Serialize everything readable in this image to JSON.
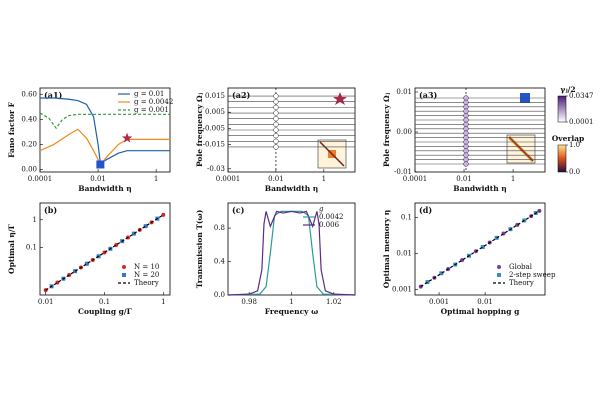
{
  "chart_data": [
    {
      "type": "line",
      "title": "(a1)",
      "xlabel": "Bandwidth η",
      "ylabel": "Fano factor F",
      "xscale": "log",
      "xlim": [
        0.0001,
        3
      ],
      "xticks": [
        0.0001,
        0.01,
        1
      ],
      "ylim": [
        -0.02,
        0.65
      ],
      "yticks": [
        {
          "value": 0,
          "label": "0.00"
        },
        {
          "value": 0.2,
          "label": "0.20"
        },
        {
          "value": 0.4,
          "label": "0.40"
        },
        {
          "value": 0.6,
          "label": "0.60"
        }
      ],
      "legend": "upper right",
      "series": [
        {
          "name": "g = 0.01",
          "color": "#1f5fa8",
          "style": "solid",
          "x": [
            0.0001,
            0.0003,
            0.001,
            0.002,
            0.004,
            0.007,
            0.01,
            0.012,
            0.02,
            0.05,
            0.1,
            0.3,
            1,
            3
          ],
          "values": [
            0.57,
            0.57,
            0.56,
            0.55,
            0.52,
            0.42,
            0.2,
            0.05,
            0.08,
            0.13,
            0.15,
            0.15,
            0.15,
            0.15
          ]
        },
        {
          "name": "g = 0.0042",
          "color": "#f08a1c",
          "style": "solid",
          "x": [
            0.0001,
            0.0003,
            0.001,
            0.002,
            0.004,
            0.007,
            0.01,
            0.012,
            0.02,
            0.05,
            0.1,
            0.3,
            1,
            3
          ],
          "values": [
            0.15,
            0.2,
            0.28,
            0.32,
            0.25,
            0.15,
            0.08,
            0.04,
            0.1,
            0.2,
            0.24,
            0.24,
            0.24,
            0.24
          ]
        },
        {
          "name": "g = 0.001",
          "color": "#2e9a3a",
          "style": "dashed",
          "x": [
            0.0001,
            0.0002,
            0.00036,
            0.0006,
            0.001,
            0.002,
            0.004,
            0.01,
            0.1,
            1,
            3
          ],
          "values": [
            0.45,
            0.41,
            0.33,
            0.4,
            0.43,
            0.44,
            0.44,
            0.44,
            0.44,
            0.44,
            0.44
          ]
        }
      ],
      "markers": [
        {
          "shape": "star",
          "color": "#b5244a",
          "x": 0.1,
          "y": 0.25
        },
        {
          "shape": "square",
          "color": "#2255cc",
          "x": 0.012,
          "y": 0.04
        }
      ]
    },
    {
      "type": "poles",
      "title": "(a2)",
      "xlabel": "Bandwidth η",
      "ylabel": "Pole frequency Ωⱼ",
      "xscale": "log",
      "xlim": [
        0.0001,
        20
      ],
      "xticks": [
        0.0001,
        0.01,
        1
      ],
      "ylim": [
        -0.032,
        0.02
      ],
      "yticks": [
        -0.03,
        -0.015,
        -0.005,
        0.005,
        0.015
      ],
      "vline": 0.01,
      "marker_x": 0.01,
      "marker_color": "#ffffff",
      "levels": [
        0.015,
        0.0115,
        0.008,
        0.0045,
        0.001,
        -0.0025,
        -0.006,
        -0.0095,
        -0.013,
        -0.0165
      ]
    },
    {
      "type": "poles",
      "title": "(a3)",
      "xlabel": "Bandwidth η",
      "ylabel": "Pole frequency Ωⱼ",
      "xscale": "log",
      "xlim": [
        0.0001,
        20
      ],
      "xticks": [
        0.0001,
        0.01,
        1
      ],
      "ylim": [
        -0.01,
        0.011
      ],
      "yticks": [
        -0.01,
        {
          "value": 0,
          "label": "0.00"
        },
        0.01
      ],
      "vline": 0.012,
      "marker_x": 0.012,
      "marker_color": "#c9b3e6",
      "levels": [
        0.0085,
        0.0074,
        0.0063,
        0.0052,
        0.0041,
        0.003,
        0.0019,
        0.0008,
        -0.0003,
        -0.0014,
        -0.0025,
        -0.0036,
        -0.0047,
        -0.0058,
        -0.0069,
        -0.008
      ],
      "colorbars": [
        {
          "label": "γⱼ/2",
          "lim": [
            0.0001,
            0.0347
          ],
          "ticks": [
            0.0001,
            0.0347
          ],
          "gradient": "gPur"
        },
        {
          "label": "Overlap",
          "lim": [
            0,
            1
          ],
          "ticks": [
            {
              "value": 0,
              "label": "0.0"
            },
            {
              "value": 1,
              "label": "1.0"
            }
          ],
          "gradient": "gOrg"
        }
      ]
    },
    {
      "type": "line",
      "title": "(b)",
      "xlabel": "Coupling g/Γ",
      "ylabel": "Optimal η/Γ",
      "xscale": "log",
      "yscale": "log",
      "xlim": [
        0.008,
        1.3
      ],
      "xticks": [
        0.01,
        0.1,
        1
      ],
      "ylim": [
        0.002,
        4
      ],
      "yticks": [
        0.1,
        1
      ],
      "legend": "lower right",
      "series": [
        {
          "name": "N = 10",
          "color": "#d62728",
          "style": "markers",
          "marker": "circle",
          "x": [
            0.01,
            0.0158,
            0.0251,
            0.0398,
            0.0631,
            0.1,
            0.158,
            0.251,
            0.398,
            0.631,
            1
          ],
          "values": [
            0.003,
            0.0056,
            0.0104,
            0.0193,
            0.036,
            0.067,
            0.125,
            0.232,
            0.433,
            0.805,
            1.5
          ]
        },
        {
          "name": "N = 20",
          "color": "#3a78c2",
          "style": "markers",
          "marker": "square",
          "x": [
            0.0126,
            0.02,
            0.0316,
            0.0501,
            0.0794,
            0.126,
            0.2,
            0.316,
            0.501,
            0.794
          ],
          "values": [
            0.0041,
            0.0077,
            0.0143,
            0.0265,
            0.049,
            0.091,
            0.171,
            0.318,
            0.59,
            1.1
          ]
        },
        {
          "name": "Theory",
          "color": "#000000",
          "style": "dashed",
          "x": [
            0.01,
            1
          ],
          "values": [
            0.003,
            1.5
          ]
        }
      ]
    },
    {
      "type": "line",
      "title": "(c)",
      "xlabel": "Frequency ω",
      "ylabel": "Transmission T(ω)",
      "xlim": [
        0.97,
        1.03
      ],
      "xticks": [
        0.98,
        1,
        1.02
      ],
      "ylim": [
        0,
        1.1
      ],
      "yticks": [
        {
          "value": 0,
          "label": "0.0"
        },
        0.4,
        0.8
      ],
      "legend": "upper right",
      "legend_title": "g",
      "series": [
        {
          "name": "0.0042",
          "color": "#2a9d8f",
          "style": "solid",
          "x": [
            0.97,
            0.985,
            0.988,
            0.99,
            0.992,
            0.995,
            1,
            1.005,
            1.008,
            1.01,
            1.012,
            1.015,
            1.03
          ],
          "values": [
            0,
            0.01,
            0.1,
            0.5,
            0.95,
            1,
            1,
            1,
            0.95,
            0.5,
            0.1,
            0.01,
            0
          ]
        },
        {
          "name": "0.006",
          "color": "#5b2a86",
          "style": "solid",
          "x": [
            0.97,
            0.98,
            0.984,
            0.986,
            0.987,
            0.988,
            0.99,
            0.993,
            0.996,
            1,
            1.004,
            1.007,
            1.01,
            1.012,
            1.013,
            1.014,
            1.016,
            1.02,
            1.03
          ],
          "values": [
            0,
            0.01,
            0.05,
            0.3,
            0.85,
            1,
            0.82,
            1,
            0.98,
            1,
            0.98,
            1,
            0.82,
            1,
            0.85,
            0.3,
            0.05,
            0.01,
            0
          ]
        }
      ]
    },
    {
      "type": "line",
      "title": "(d)",
      "xlabel": "Optimal hopping g",
      "ylabel": "Optimal memory η",
      "xscale": "log",
      "yscale": "log",
      "xlim": [
        0.0003,
        0.2
      ],
      "xticks": [
        0.001,
        0.01
      ],
      "ylim": [
        0.0007,
        0.25
      ],
      "yticks": [
        0.001,
        0.01,
        0.1
      ],
      "legend": "lower right",
      "series": [
        {
          "name": "Global",
          "color": "#7b3fa0",
          "style": "markers",
          "marker": "circle",
          "x": [
            0.0004,
            0.00079,
            0.00158,
            0.00316,
            0.0063,
            0.0126,
            0.0251,
            0.0501,
            0.1,
            0.151
          ],
          "values": [
            0.0012,
            0.0021,
            0.0037,
            0.0065,
            0.0115,
            0.02,
            0.0355,
            0.062,
            0.108,
            0.151
          ]
        },
        {
          "name": "2-step sweep",
          "color": "#3a8fc2",
          "style": "markers",
          "marker": "square",
          "x": [
            0.00056,
            0.00112,
            0.00224,
            0.00447,
            0.0089,
            0.0178,
            0.0355,
            0.0708,
            0.126
          ],
          "values": [
            0.0016,
            0.0028,
            0.0049,
            0.0086,
            0.015,
            0.027,
            0.047,
            0.082,
            0.132
          ]
        },
        {
          "name": "Theory",
          "color": "#000000",
          "style": "dashed",
          "x": [
            0.0004,
            0.151
          ],
          "values": [
            0.0012,
            0.151
          ]
        }
      ]
    }
  ]
}
